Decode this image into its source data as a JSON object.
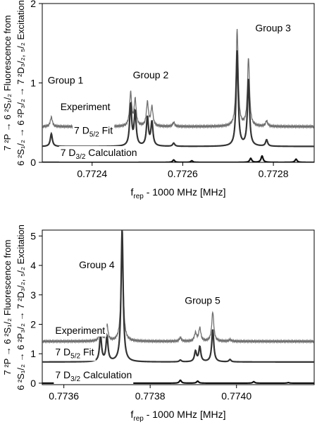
{
  "chart_data": [
    {
      "type": "line",
      "panel": "top",
      "xlabel": "f_rep - 1000 MHz [MHz]",
      "xlabel_main": "f",
      "xlabel_sub": "rep",
      "xlabel_rest": " - 1000 MHz [MHz]",
      "ylabel_line1": "7 ²P → 6 ²S₁/₂ Fluorescence from",
      "ylabel_line2": "6 ²S₁/₂ → 6 ²P₃/₂ → 7 ²D₃/₂, ₅/₂ Excitation",
      "xlim": [
        0.77229,
        0.77289
      ],
      "ylim": [
        0,
        2
      ],
      "xticks": [
        0.7724,
        0.7726,
        0.7728
      ],
      "xtick_labels": [
        "0.7724",
        "0.7726",
        "0.7728"
      ],
      "yticks": [
        0,
        1,
        2
      ],
      "ytick_labels": [
        "0",
        "1",
        "2"
      ],
      "grid": false,
      "series": [
        {
          "name": "Experiment",
          "color": "#707070",
          "baseline": 0.45,
          "peaks": [
            [
              0.77231,
              0.12
            ],
            [
              0.772485,
              0.42
            ],
            [
              0.772495,
              0.33
            ],
            [
              0.772522,
              0.3
            ],
            [
              0.772532,
              0.24
            ],
            [
              0.77258,
              0.05
            ],
            [
              0.77272,
              1.22
            ],
            [
              0.772745,
              0.86
            ],
            [
              0.772785,
              0.07
            ]
          ]
        },
        {
          "name": "7 D5/2 Fit",
          "color": "#333333",
          "baseline": 0.2,
          "peaks": [
            [
              0.77231,
              0.16
            ],
            [
              0.772485,
              0.52
            ],
            [
              0.772495,
              0.42
            ],
            [
              0.772522,
              0.36
            ],
            [
              0.772532,
              0.3
            ],
            [
              0.77258,
              0.04
            ],
            [
              0.77272,
              1.2
            ],
            [
              0.772745,
              0.84
            ],
            [
              0.772785,
              0.08
            ]
          ]
        },
        {
          "name": "7 D3/2 Calculation",
          "color": "#111111",
          "baseline": 0.0,
          "peaks": [
            [
              0.77258,
              0.03
            ],
            [
              0.77262,
              0.02
            ],
            [
              0.77275,
              0.05
            ],
            [
              0.772775,
              0.08
            ],
            [
              0.77285,
              0.04
            ]
          ]
        }
      ],
      "annotations": [
        {
          "text": "Group 1",
          "x": 0.772302,
          "y": 0.99
        },
        {
          "text": "Group 2",
          "x": 0.77249,
          "y": 1.06
        },
        {
          "text": "Group 3",
          "x": 0.77276,
          "y": 1.65
        }
      ],
      "series_labels": [
        {
          "main": "Experiment",
          "sub": "",
          "rest": "",
          "x": 0.77233,
          "y": 0.66
        },
        {
          "main": "7 D",
          "sub": "5/2",
          "rest": " Fit",
          "x": 0.77236,
          "y": 0.36
        },
        {
          "main": "7 D",
          "sub": "3/2",
          "rest": " Calculation",
          "x": 0.77233,
          "y": 0.08
        }
      ]
    },
    {
      "type": "line",
      "panel": "bottom",
      "xlabel": "f_rep - 1000 MHz [MHz]",
      "xlabel_main": "f",
      "xlabel_sub": "rep",
      "xlabel_rest": " - 1000 MHz [MHz]",
      "ylabel_line1": "7 ²P → 6 ²S₁/₂ Fluorescence from",
      "ylabel_line2": "6 ²S₁/₂ → 6 ²P₃/₂ → 7 ²D₃/₂, ₅/₂ Excitation",
      "xlim": [
        0.77355,
        0.77418
      ],
      "ylim": [
        -0.05,
        5.2
      ],
      "xticks": [
        0.7736,
        0.7738,
        0.774
      ],
      "xtick_labels": [
        "0.7736",
        "0.7738",
        "0.7740"
      ],
      "yticks": [
        0,
        1,
        2,
        3,
        4,
        5
      ],
      "ytick_labels": [
        "0",
        "1",
        "2",
        "3",
        "4",
        "5"
      ],
      "grid": false,
      "series": [
        {
          "name": "Experiment",
          "color": "#707070",
          "baseline": 1.42,
          "peaks": [
            [
              0.773685,
              0.5
            ],
            [
              0.7737,
              0.55
            ],
            [
              0.773735,
              3.7
            ],
            [
              0.77387,
              0.12
            ],
            [
              0.773905,
              0.28
            ],
            [
              0.773915,
              0.45
            ],
            [
              0.773945,
              1.0
            ],
            [
              0.773985,
              0.06
            ]
          ]
        },
        {
          "name": "7 D5/2 Fit",
          "color": "#333333",
          "baseline": 0.72,
          "peaks": [
            [
              0.773685,
              0.9
            ],
            [
              0.7737,
              0.85
            ],
            [
              0.773735,
              4.5
            ],
            [
              0.77387,
              0.06
            ],
            [
              0.773905,
              0.35
            ],
            [
              0.773915,
              0.5
            ],
            [
              0.773945,
              1.1
            ],
            [
              0.773985,
              0.08
            ]
          ]
        },
        {
          "name": "7 D3/2 Calculation",
          "color": "#111111",
          "baseline": 0.0,
          "peaks": [
            [
              0.77369,
              0.03
            ],
            [
              0.77387,
              0.1
            ],
            [
              0.77391,
              0.07
            ],
            [
              0.77404,
              0.05
            ],
            [
              0.77412,
              0.02
            ]
          ]
        }
      ],
      "annotations": [
        {
          "text": "Group 4",
          "x": 0.773635,
          "y": 3.9
        },
        {
          "text": "Group 5",
          "x": 0.77388,
          "y": 2.7
        }
      ],
      "series_labels": [
        {
          "main": "Experiment",
          "sub": "",
          "rest": "",
          "x": 0.77358,
          "y": 1.68
        },
        {
          "main": "7 D",
          "sub": "5/2",
          "rest": " Fit",
          "x": 0.77358,
          "y": 0.95
        },
        {
          "main": "7 D",
          "sub": "3/2",
          "rest": " Calculation",
          "x": 0.77358,
          "y": 0.16
        }
      ]
    }
  ]
}
